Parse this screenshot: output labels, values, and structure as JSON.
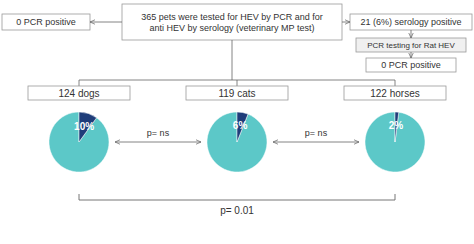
{
  "chart_data": [
    {
      "type": "pie",
      "title": "124 dogs",
      "values": [
        90,
        10
      ],
      "value_labels": [
        null,
        "10%"
      ],
      "colors": [
        "#5CC8C8",
        "#1F3D7A"
      ],
      "data_labels": true,
      "annotations": [
        "365 pets were tested for HEV by PCR and for\nanti HEV by serology (veterinary MP test)",
        "0 PCR positive",
        "21 (6%) serology positive",
        "PCR testing for Rat HEV",
        "0 PCR positive",
        "p= ns",
        "p= ns",
        "p= 0.01"
      ]
    },
    {
      "type": "pie",
      "title": "119 cats",
      "values": [
        94,
        6
      ],
      "value_labels": [
        null,
        "6%"
      ],
      "colors": [
        "#5CC8C8",
        "#1F3D7A"
      ],
      "data_labels": true
    },
    {
      "type": "pie",
      "title": "122 horses",
      "values": [
        98,
        2
      ],
      "value_labels": [
        null,
        "2%"
      ],
      "colors": [
        "#5CC8C8",
        "#1F3D7A"
      ],
      "data_labels": true
    }
  ]
}
